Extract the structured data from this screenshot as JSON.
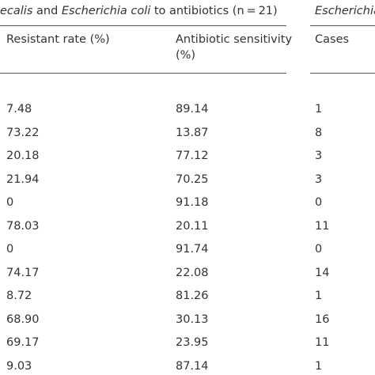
{
  "caption": {
    "parts": [
      "ecalis",
      " and ",
      "Escherichia coli",
      " to antibiotics (n = 21)"
    ],
    "next": "Escherichia"
  },
  "table": {
    "header": [
      "Resistant rate (%)",
      "Antibiotic sensitivity (%)",
      "Cases"
    ],
    "rows": [
      [
        "7.48",
        "89.14",
        "1"
      ],
      [
        "73.22",
        "13.87",
        "8"
      ],
      [
        "20.18",
        "77.12",
        "3"
      ],
      [
        "21.94",
        "70.25",
        "3"
      ],
      [
        "0",
        "91.18",
        "0"
      ],
      [
        "78.03",
        "20.11",
        "11"
      ],
      [
        "0",
        "91.74",
        "0"
      ],
      [
        "74.17",
        "22.08",
        "14"
      ],
      [
        "8.72",
        "81.26",
        "1"
      ],
      [
        "68.90",
        "30.13",
        "16"
      ],
      [
        "69.17",
        "23.95",
        "11"
      ],
      [
        "9.03",
        "87.14",
        "1"
      ]
    ]
  }
}
